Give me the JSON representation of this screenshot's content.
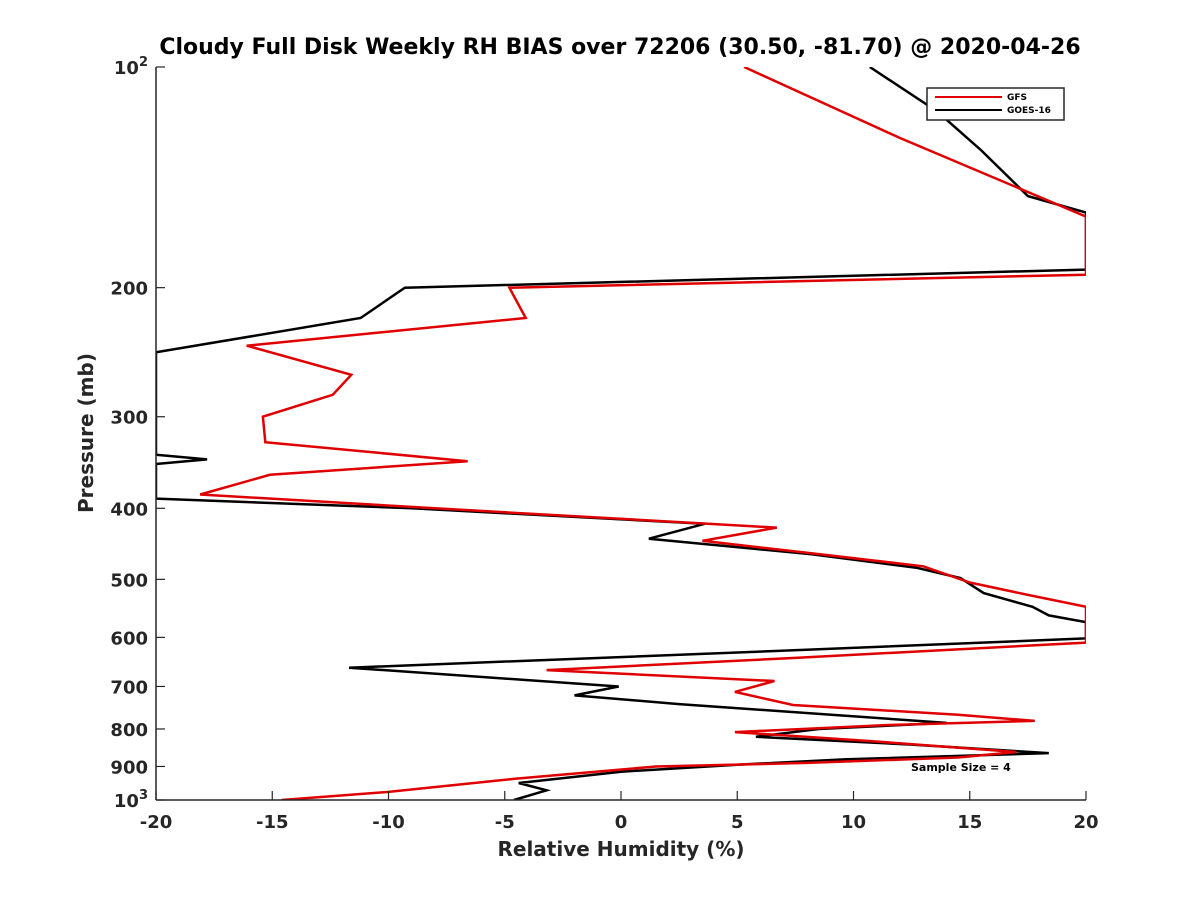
{
  "chart_data": {
    "type": "line",
    "title": "Cloudy Full Disk Weekly RH BIAS over 72206 (30.50, -81.70) @ 2020-04-26",
    "xlabel": "Relative Humidity (%)",
    "ylabel": "Pressure (mb)",
    "xlim": [
      -20,
      20
    ],
    "ylim": [
      100,
      1000
    ],
    "yscale": "log",
    "y_reversed": true,
    "grid": false,
    "legend_position": "top-right",
    "x_ticks": [
      -20,
      -15,
      -10,
      -5,
      0,
      5,
      10,
      15,
      20
    ],
    "x_tick_labels": [
      "-20",
      "-15",
      "-10",
      "-5",
      "0",
      "5",
      "10",
      "15",
      "20"
    ],
    "y_ticks": [
      {
        "value": 100,
        "base": "10",
        "exp": "2",
        "label": ""
      },
      {
        "value": 200,
        "label": "200"
      },
      {
        "value": 300,
        "label": "300"
      },
      {
        "value": 400,
        "label": "400"
      },
      {
        "value": 500,
        "label": "500"
      },
      {
        "value": 600,
        "label": "600"
      },
      {
        "value": 700,
        "label": "700"
      },
      {
        "value": 800,
        "label": "800"
      },
      {
        "value": 900,
        "label": "900"
      },
      {
        "value": 1000,
        "base": "10",
        "exp": "3",
        "label": ""
      }
    ],
    "annotation": "Sample Size = 4",
    "series": [
      {
        "name": "GFS",
        "color": "#e00000",
        "points": [
          [
            5.3,
            100
          ],
          [
            12,
            125
          ],
          [
            20,
            160
          ],
          [
            20,
            192
          ],
          [
            -4.8,
            200
          ],
          [
            -4.1,
            220
          ],
          [
            -16.1,
            240
          ],
          [
            -11.6,
            263
          ],
          [
            -12.4,
            280
          ],
          [
            -15.4,
            300
          ],
          [
            -15.3,
            325
          ],
          [
            -6.6,
            345
          ],
          [
            -15.1,
            360
          ],
          [
            -18.1,
            383
          ],
          [
            -5.0,
            405
          ],
          [
            6.7,
            425
          ],
          [
            3.5,
            443
          ],
          [
            8.0,
            460
          ],
          [
            13.0,
            480
          ],
          [
            15.0,
            505
          ],
          [
            17.5,
            525
          ],
          [
            20,
            545
          ],
          [
            20,
            610
          ],
          [
            7.5,
            640
          ],
          [
            -3.2,
            665
          ],
          [
            6.6,
            688
          ],
          [
            4.9,
            712
          ],
          [
            7.4,
            742
          ],
          [
            14.5,
            765
          ],
          [
            17.8,
            780
          ],
          [
            11.5,
            790
          ],
          [
            4.9,
            808
          ],
          [
            10.5,
            830
          ],
          [
            17.0,
            860
          ],
          [
            14.5,
            875
          ],
          [
            8.0,
            890
          ],
          [
            1.5,
            900
          ],
          [
            -4.5,
            935
          ],
          [
            -10.0,
            975
          ],
          [
            -14.6,
            1000
          ]
        ]
      },
      {
        "name": "GOES-16",
        "color": "#000000",
        "points": [
          [
            10.7,
            100
          ],
          [
            13.6,
            115
          ],
          [
            15.5,
            130
          ],
          [
            17.5,
            150
          ],
          [
            20,
            158
          ],
          [
            20,
            189
          ],
          [
            -9.3,
            200
          ],
          [
            -11.2,
            220
          ],
          [
            -20,
            245
          ],
          [
            -20,
            338
          ],
          [
            -17.8,
            343
          ],
          [
            -20,
            348
          ],
          [
            -20,
            388
          ],
          [
            -9.0,
            400
          ],
          [
            3.6,
            420
          ],
          [
            1.2,
            440
          ],
          [
            8.2,
            462
          ],
          [
            12.7,
            482
          ],
          [
            14.6,
            498
          ],
          [
            15.6,
            522
          ],
          [
            17.7,
            545
          ],
          [
            18.4,
            560
          ],
          [
            20,
            572
          ],
          [
            20,
            602
          ],
          [
            7.3,
            625
          ],
          [
            -11.7,
            660
          ],
          [
            -0.1,
            700
          ],
          [
            -2.0,
            720
          ],
          [
            2.5,
            740
          ],
          [
            14.0,
            785
          ],
          [
            8.5,
            800
          ],
          [
            5.8,
            820
          ],
          [
            12.4,
            840
          ],
          [
            18.4,
            863
          ],
          [
            9.7,
            880
          ],
          [
            5.0,
            895
          ],
          [
            0.0,
            915
          ],
          [
            -4.4,
            948
          ],
          [
            -3.2,
            970
          ],
          [
            -4.6,
            1000
          ]
        ]
      }
    ]
  }
}
